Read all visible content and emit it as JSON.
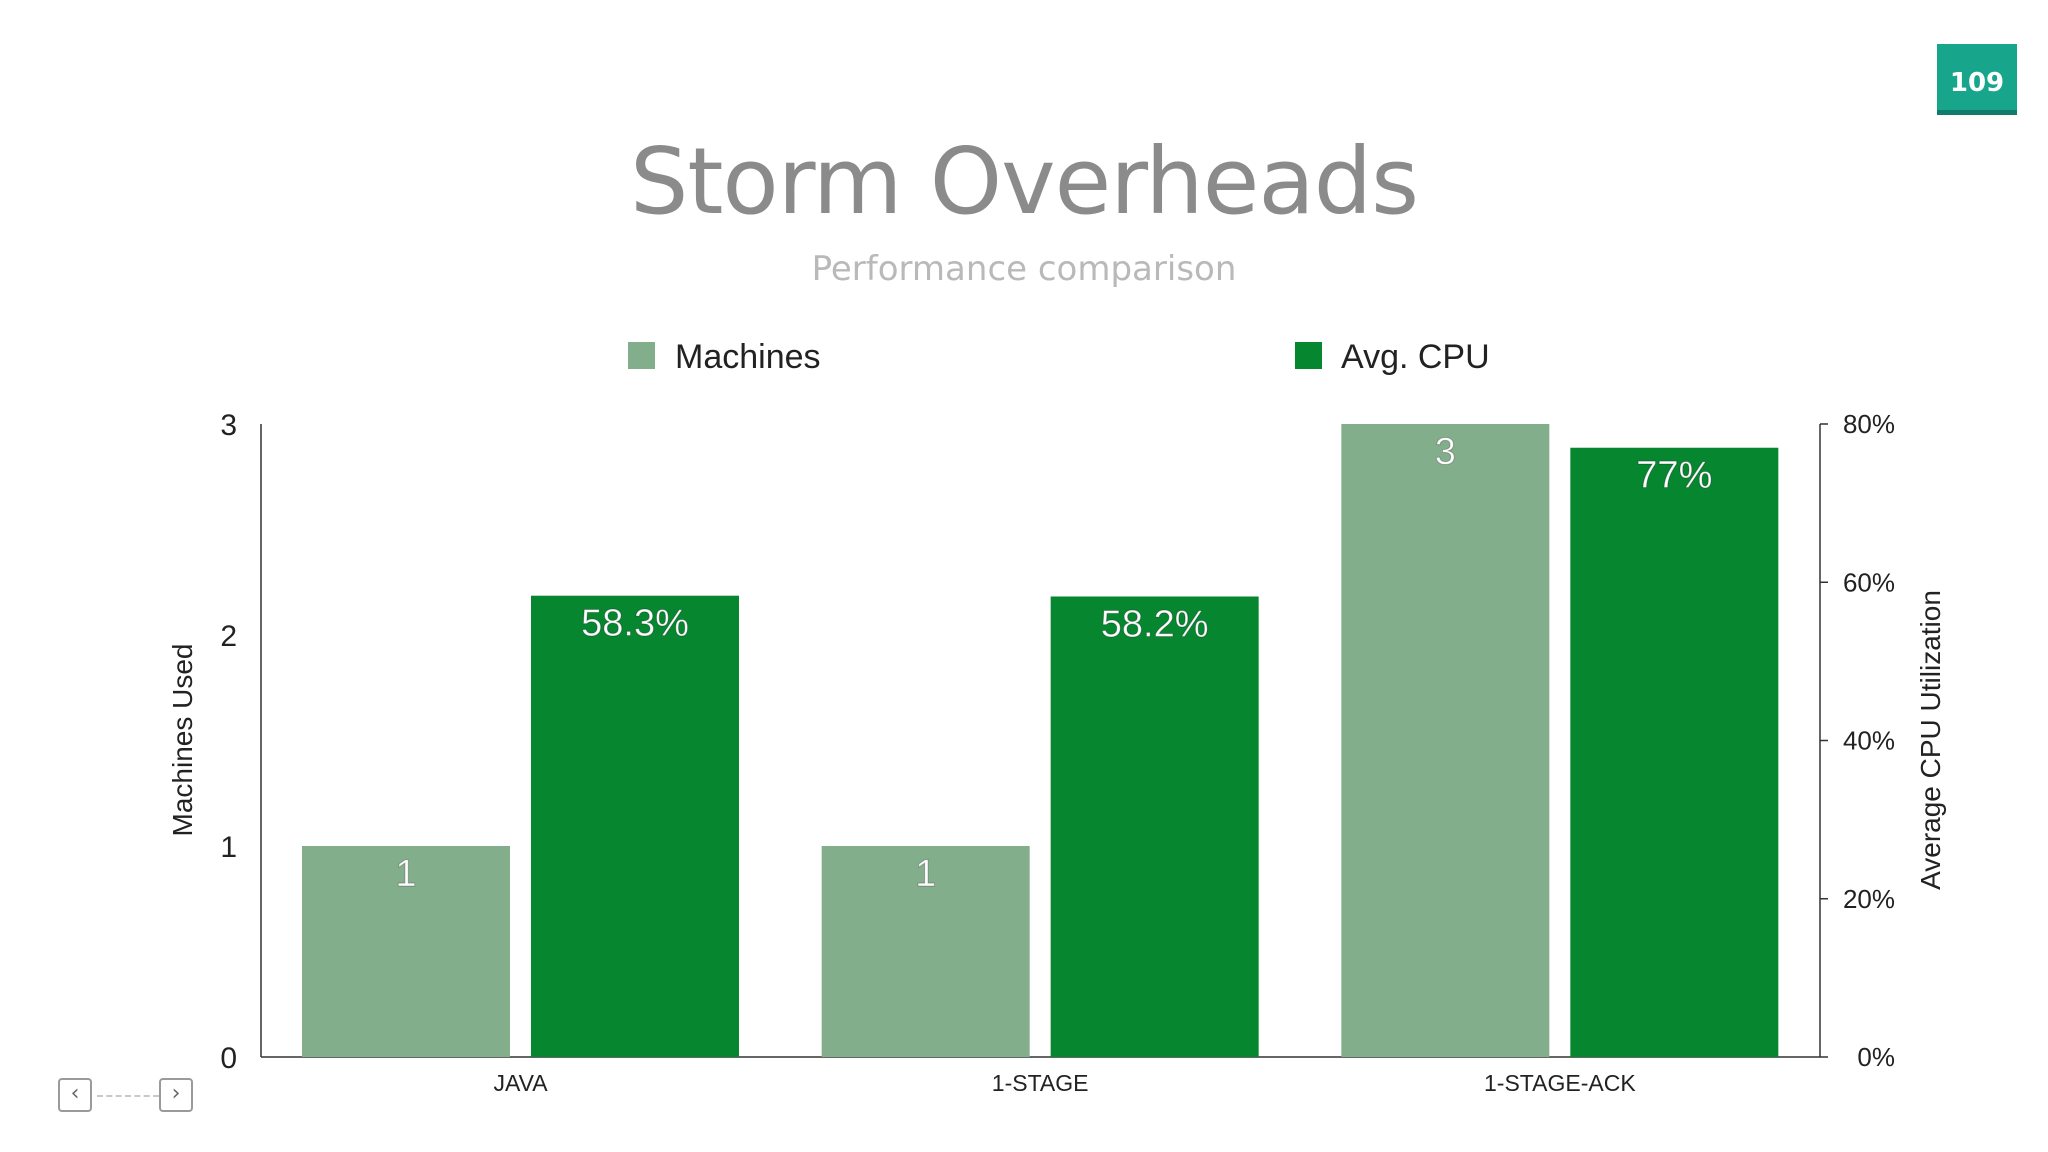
{
  "slide": {
    "page_number": "109",
    "title": "Storm Overheads",
    "subtitle": "Performance comparison"
  },
  "nav": {
    "prev_icon": "chevron-left-icon",
    "next_icon": "chevron-right-icon"
  },
  "chart_data": {
    "type": "bar",
    "categories": [
      "JAVA",
      "1-STAGE",
      "1-STAGE-ACK"
    ],
    "series": [
      {
        "name": "Machines",
        "axis": "left",
        "color": "#83ae8b",
        "values": [
          1,
          1,
          3
        ],
        "labels": [
          "1",
          "1",
          "3"
        ]
      },
      {
        "name": "Avg. CPU",
        "axis": "right",
        "color": "#05862f",
        "values": [
          58.3,
          58.2,
          77
        ],
        "labels": [
          "58.3%",
          "58.2%",
          "77%"
        ]
      }
    ],
    "ylabel": "Machines Used",
    "ylim": [
      0,
      3
    ],
    "yticks": [
      "0",
      "1",
      "2",
      "3"
    ],
    "y2label": "Average CPU Utilization",
    "y2lim": [
      0,
      80
    ],
    "y2ticks": [
      "0%",
      "20%",
      "40%",
      "60%",
      "80%"
    ],
    "legend": "top",
    "grid": false
  }
}
